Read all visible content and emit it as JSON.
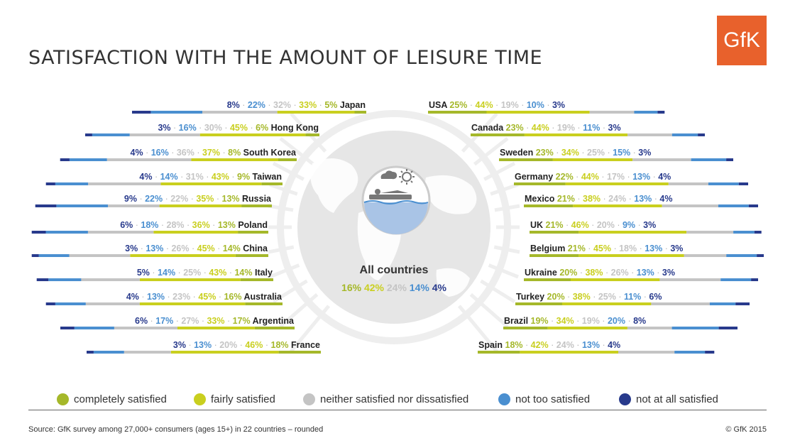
{
  "title": "SATISFACTION WITH THE AMOUNT OF LEISURE TIME",
  "logo_text": "GfK",
  "source": "Source: GfK survey among 27,000+ consumers (ages 15+) in 22 countries – rounded",
  "copyright": "© GfK 2015",
  "colors": {
    "completely": "#a5b82a",
    "fairly": "#c9cf1f",
    "neither": "#c4c4c4",
    "not_too": "#4a8fd0",
    "not_at_all": "#283a8c",
    "logo": "#e8612c"
  },
  "legend": [
    {
      "label": "completely satisfied",
      "color": "#a5b82a"
    },
    {
      "label": "fairly satisfied",
      "color": "#c9cf1f"
    },
    {
      "label": "neither satisfied nor dissatisfied",
      "color": "#c4c4c4"
    },
    {
      "label": "not too satisfied",
      "color": "#4a8fd0"
    },
    {
      "label": "not at all satisfied",
      "color": "#283a8c"
    }
  ],
  "chart_data": {
    "type": "bar",
    "unit": "%",
    "categories_order": [
      "completely satisfied",
      "fairly satisfied",
      "neither satisfied nor dissatisfied",
      "not too satisfied",
      "not at all satisfied"
    ],
    "all_countries": {
      "label": "All countries",
      "values": [
        16,
        42,
        24,
        14,
        4
      ]
    },
    "left": [
      {
        "country": "Japan",
        "values": [
          5,
          33,
          32,
          22,
          8
        ]
      },
      {
        "country": "Hong Kong",
        "values": [
          6,
          45,
          30,
          16,
          3
        ]
      },
      {
        "country": "South Korea",
        "values": [
          8,
          37,
          36,
          16,
          4
        ]
      },
      {
        "country": "Taiwan",
        "values": [
          9,
          43,
          31,
          14,
          4
        ]
      },
      {
        "country": "Russia",
        "values": [
          13,
          35,
          22,
          22,
          9
        ]
      },
      {
        "country": "Poland",
        "values": [
          13,
          36,
          28,
          18,
          6
        ]
      },
      {
        "country": "China",
        "values": [
          14,
          45,
          26,
          13,
          3
        ]
      },
      {
        "country": "Italy",
        "values": [
          14,
          43,
          25,
          14,
          5
        ]
      },
      {
        "country": "Australia",
        "values": [
          16,
          45,
          23,
          13,
          4
        ]
      },
      {
        "country": "Argentina",
        "values": [
          17,
          33,
          27,
          17,
          6
        ]
      },
      {
        "country": "France",
        "values": [
          18,
          46,
          20,
          13,
          3
        ]
      }
    ],
    "right": [
      {
        "country": "USA",
        "values": [
          25,
          44,
          19,
          10,
          3
        ]
      },
      {
        "country": "Canada",
        "values": [
          23,
          44,
          19,
          11,
          3
        ]
      },
      {
        "country": "Sweden",
        "values": [
          23,
          34,
          25,
          15,
          3
        ]
      },
      {
        "country": "Germany",
        "values": [
          22,
          44,
          17,
          13,
          4
        ]
      },
      {
        "country": "Mexico",
        "values": [
          21,
          38,
          24,
          13,
          4
        ]
      },
      {
        "country": "UK",
        "values": [
          21,
          46,
          20,
          9,
          3
        ]
      },
      {
        "country": "Belgium",
        "values": [
          21,
          45,
          18,
          13,
          3
        ]
      },
      {
        "country": "Ukraine",
        "values": [
          20,
          38,
          26,
          13,
          3
        ]
      },
      {
        "country": "Turkey",
        "values": [
          20,
          38,
          25,
          11,
          6
        ]
      },
      {
        "country": "Brazil",
        "values": [
          19,
          34,
          19,
          20,
          8
        ]
      },
      {
        "country": "Spain",
        "values": [
          18,
          42,
          24,
          13,
          4
        ]
      }
    ]
  }
}
